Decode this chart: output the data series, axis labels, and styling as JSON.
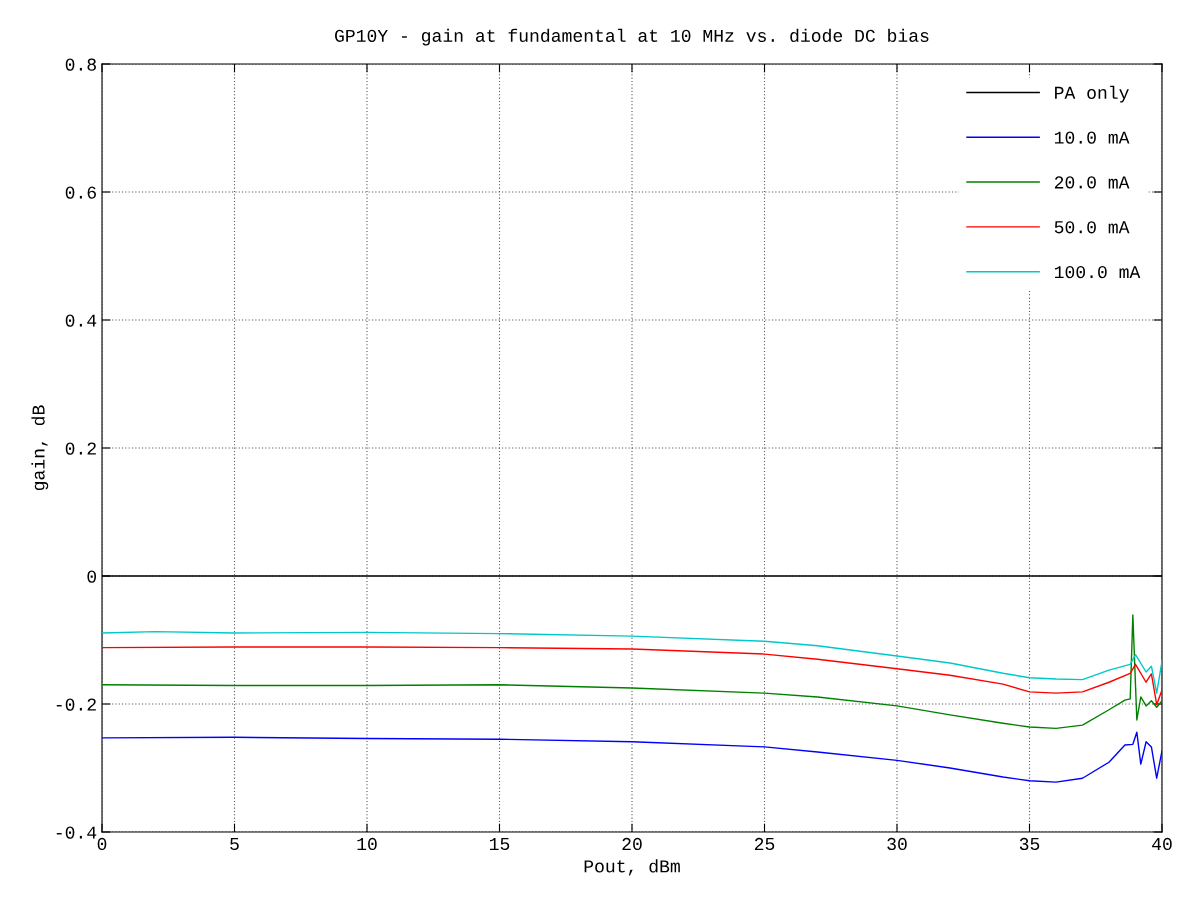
{
  "chart_data": {
    "type": "line",
    "title": "GP10Y - gain at fundamental at 10 MHz vs. diode DC bias",
    "xlabel": "Pout, dBm",
    "ylabel": "gain, dB",
    "xlim": [
      0,
      40
    ],
    "ylim": [
      -0.4,
      0.8
    ],
    "xticks": [
      0,
      5,
      10,
      15,
      20,
      25,
      30,
      35,
      40
    ],
    "yticks": [
      {
        "value": -0.4,
        "label": "-0.4"
      },
      {
        "value": -0.2,
        "label": "-0.2"
      },
      0,
      0.2,
      0.4,
      0.6,
      0.8
    ],
    "grid": true,
    "legend": "top right",
    "line_style": "solid",
    "marker": "none",
    "series": [
      {
        "name": "PA only",
        "color": "#000000",
        "x": [
          0,
          40
        ],
        "values": [
          0,
          0
        ]
      },
      {
        "name": "10.0 mA",
        "color": "#0000ff",
        "x": [
          0,
          5,
          10,
          15,
          20,
          25,
          27,
          30,
          32,
          34,
          35,
          36,
          37,
          38,
          38.6,
          38.9,
          39.05,
          39.2,
          39.4,
          39.6,
          39.8,
          40
        ],
        "values": [
          -0.253,
          -0.252,
          -0.254,
          -0.255,
          -0.259,
          -0.267,
          -0.275,
          -0.288,
          -0.3,
          -0.314,
          -0.32,
          -0.322,
          -0.316,
          -0.291,
          -0.264,
          -0.263,
          -0.244,
          -0.294,
          -0.259,
          -0.267,
          -0.316,
          -0.273
        ]
      },
      {
        "name": "20.0 mA",
        "color": "#008000",
        "x": [
          0,
          5,
          10,
          15,
          20,
          25,
          27,
          30,
          32,
          34,
          35,
          36,
          37,
          38,
          38.6,
          38.8,
          38.9,
          39.05,
          39.2,
          39.4,
          39.6,
          39.8,
          40
        ],
        "values": [
          -0.17,
          -0.171,
          -0.171,
          -0.17,
          -0.175,
          -0.183,
          -0.189,
          -0.203,
          -0.217,
          -0.23,
          -0.236,
          -0.238,
          -0.233,
          -0.209,
          -0.194,
          -0.192,
          -0.061,
          -0.225,
          -0.189,
          -0.203,
          -0.195,
          -0.205,
          -0.195
        ]
      },
      {
        "name": "50.0 mA",
        "color": "#ff0000",
        "x": [
          0,
          5,
          10,
          15,
          20,
          25,
          27,
          30,
          32,
          34,
          35,
          36,
          37,
          38,
          38.8,
          39.0,
          39.4,
          39.6,
          39.8,
          40
        ],
        "values": [
          -0.112,
          -0.111,
          -0.111,
          -0.112,
          -0.114,
          -0.122,
          -0.13,
          -0.145,
          -0.155,
          -0.169,
          -0.181,
          -0.183,
          -0.181,
          -0.166,
          -0.152,
          -0.138,
          -0.166,
          -0.153,
          -0.201,
          -0.178
        ]
      },
      {
        "name": "100.0 mA",
        "color": "#00c8c8",
        "x": [
          0,
          2,
          5,
          10,
          15,
          20,
          25,
          27,
          30,
          32,
          34,
          35,
          36,
          37,
          38,
          38.8,
          39.0,
          39.4,
          39.6,
          39.8,
          40
        ],
        "values": [
          -0.089,
          -0.087,
          -0.089,
          -0.088,
          -0.09,
          -0.094,
          -0.102,
          -0.109,
          -0.125,
          -0.136,
          -0.152,
          -0.159,
          -0.161,
          -0.162,
          -0.147,
          -0.138,
          -0.123,
          -0.15,
          -0.141,
          -0.183,
          -0.133
        ]
      }
    ]
  }
}
